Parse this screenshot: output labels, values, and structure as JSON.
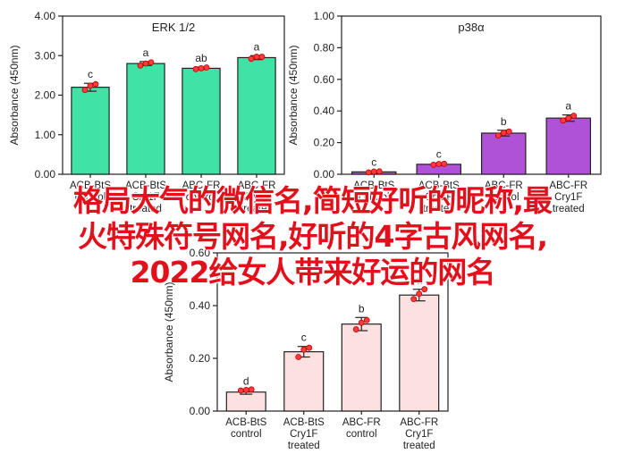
{
  "chart_data": [
    {
      "type": "bar",
      "title": "ERK 1/2",
      "ylabel": "Absorbance (450nm)",
      "xlabel": "",
      "ylim": [
        0,
        4
      ],
      "yticks": [
        "0.00",
        "1.00",
        "2.00",
        "3.00",
        "4.00"
      ],
      "categories": [
        [
          "ACB-BtS",
          "control"
        ],
        [
          "ACB-BtS",
          "Cry1F",
          "treated"
        ],
        [
          "ABC-FR",
          "control"
        ],
        [
          "ABC-FR",
          "Cry1F",
          "treated"
        ]
      ],
      "values": [
        2.2,
        2.8,
        2.68,
        2.95
      ],
      "errors": [
        0.1,
        0.05,
        0.03,
        0.05
      ],
      "points": [
        [
          2.13,
          2.24,
          2.28
        ],
        [
          2.75,
          2.8,
          2.83
        ],
        [
          2.66,
          2.68,
          2.7
        ],
        [
          2.92,
          2.97,
          2.97
        ]
      ],
      "letters": [
        "c",
        "a",
        "ab",
        "a"
      ],
      "bar_color": "#3fe3a6",
      "grid": false
    },
    {
      "type": "bar",
      "title": "p38α",
      "ylabel": "Absorbance (450nm)",
      "xlabel": "",
      "ylim": [
        0,
        1
      ],
      "yticks": [
        "0.00",
        "0.20",
        "0.40",
        "0.60",
        "0.80",
        "1.00"
      ],
      "categories": [
        [
          "ACB-BtS",
          "control"
        ],
        [
          "ACB-BtS",
          "Cry1F",
          "treated"
        ],
        [
          "ABC-FR",
          "control"
        ],
        [
          "ABC-FR",
          "Cry1F",
          "treated"
        ]
      ],
      "values": [
        0.015,
        0.063,
        0.26,
        0.355
      ],
      "errors": [
        0.005,
        0.008,
        0.018,
        0.02
      ],
      "points": [
        [
          0.012,
          0.017,
          0.018
        ],
        [
          0.06,
          0.065,
          0.066
        ],
        [
          0.245,
          0.262,
          0.27
        ],
        [
          0.34,
          0.355,
          0.37
        ]
      ],
      "letters": [
        "c",
        "c",
        "b",
        "a"
      ],
      "bar_color": "#b052d8",
      "grid": false
    },
    {
      "type": "bar",
      "title": "",
      "ylabel": "Absorbance (450nm)",
      "xlabel": "",
      "ylim": [
        0,
        0.6
      ],
      "yticks": [
        "0.00",
        "0.20",
        "0.40",
        "0.60"
      ],
      "categories": [
        [
          "ACB-BtS",
          "control"
        ],
        [
          "ACB-BtS",
          "Cry1F",
          "treated"
        ],
        [
          "ABC-FR",
          "control"
        ],
        [
          "ABC-FR",
          "Cry1F",
          "treated"
        ]
      ],
      "values": [
        0.072,
        0.225,
        0.33,
        0.44
      ],
      "errors": [
        0.008,
        0.02,
        0.025,
        0.022
      ],
      "points": [
        [
          0.078,
          0.08,
          0.082
        ],
        [
          0.205,
          0.233,
          0.24
        ],
        [
          0.31,
          0.335,
          0.345
        ],
        [
          0.425,
          0.445,
          0.462
        ]
      ],
      "letters": [
        "d",
        "c",
        "b",
        "a"
      ],
      "bar_color": "#fde0e0",
      "grid": false
    }
  ],
  "overlay_text": [
    "格局大气的微信名,简短好听的昵称,最",
    "火特殊符号网名,好听的4字古风网名,",
    "2022给女人带来好运的网名"
  ]
}
